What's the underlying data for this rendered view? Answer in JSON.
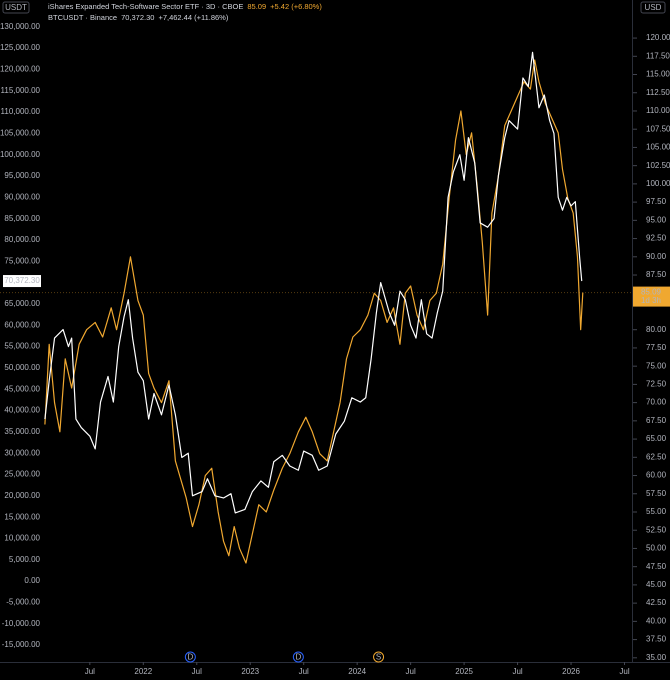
{
  "chart_data": {
    "type": "line",
    "y_unit": "USDT",
    "y2_unit": "USD",
    "countdown": "1d 3h",
    "grid": false,
    "xlim": [
      2020.66,
      2026.57
    ],
    "xticks": [
      {
        "value": 2021.5,
        "label": "Jul"
      },
      2022,
      {
        "value": 2022.5,
        "label": "Jul"
      },
      2023,
      {
        "value": 2023.5,
        "label": "Jul"
      },
      2024,
      {
        "value": 2024.5,
        "label": "Jul"
      },
      2025,
      {
        "value": 2025.5,
        "label": "Jul"
      },
      2026,
      {
        "value": 2026.5,
        "label": "Jul"
      }
    ],
    "ylim": [
      -18500,
      133000
    ],
    "yticks": [
      {
        "value": 130000,
        "label": "130,000.00"
      },
      {
        "value": 125000,
        "label": "125,000.00"
      },
      {
        "value": 120000,
        "label": "120,000.00"
      },
      {
        "value": 115000,
        "label": "115,000.00"
      },
      {
        "value": 110000,
        "label": "110,000.00"
      },
      {
        "value": 105000,
        "label": "105,000.00"
      },
      {
        "value": 100000,
        "label": "100,000.00"
      },
      {
        "value": 95000,
        "label": "95,000.00"
      },
      {
        "value": 90000,
        "label": "90,000.00"
      },
      {
        "value": 85000,
        "label": "85,000.00"
      },
      {
        "value": 80000,
        "label": "80,000.00"
      },
      {
        "value": 75000,
        "label": "75,000.00"
      },
      {
        "value": 65000,
        "label": "65,000.00"
      },
      {
        "value": 60000,
        "label": "60,000.00"
      },
      {
        "value": 55000,
        "label": "55,000.00"
      },
      {
        "value": 50000,
        "label": "50,000.00"
      },
      {
        "value": 45000,
        "label": "45,000.00"
      },
      {
        "value": 40000,
        "label": "40,000.00"
      },
      {
        "value": 35000,
        "label": "35,000.00"
      },
      {
        "value": 30000,
        "label": "30,000.00"
      },
      {
        "value": 25000,
        "label": "25,000.00"
      },
      {
        "value": 20000,
        "label": "20,000.00"
      },
      {
        "value": 15000,
        "label": "15,000.00"
      },
      {
        "value": 10000,
        "label": "10,000.00"
      },
      {
        "value": 5000,
        "label": "5,000.00"
      },
      {
        "value": 0,
        "label": "0.00"
      },
      {
        "value": -5000,
        "label": "-5,000.00"
      },
      {
        "value": -10000,
        "label": "-10,000.00"
      },
      {
        "value": -15000,
        "label": "-15,000.00"
      }
    ],
    "y2lim": [
      34.7,
      123.3
    ],
    "y2ticks": [
      {
        "value": 120,
        "label": "120.00"
      },
      {
        "value": 117.5,
        "label": "117.50"
      },
      {
        "value": 115,
        "label": "115.00"
      },
      {
        "value": 112.5,
        "label": "112.50"
      },
      {
        "value": 110,
        "label": "110.00"
      },
      {
        "value": 107.5,
        "label": "107.50"
      },
      {
        "value": 105,
        "label": "105.00"
      },
      {
        "value": 102.5,
        "label": "102.50"
      },
      {
        "value": 100,
        "label": "100.00"
      },
      {
        "value": 97.5,
        "label": "97.50"
      },
      {
        "value": 95,
        "label": "95.00"
      },
      {
        "value": 92.5,
        "label": "92.50"
      },
      {
        "value": 90,
        "label": "90.00"
      },
      {
        "value": 87.5,
        "label": "87.50"
      },
      {
        "value": 80,
        "label": "80.00"
      },
      {
        "value": 77.5,
        "label": "77.50"
      },
      {
        "value": 75,
        "label": "75.00"
      },
      {
        "value": 72.5,
        "label": "72.50"
      },
      {
        "value": 70,
        "label": "70.00"
      },
      {
        "value": 67.5,
        "label": "67.50"
      },
      {
        "value": 65,
        "label": "65.00"
      },
      {
        "value": 62.5,
        "label": "62.50"
      },
      {
        "value": 60,
        "label": "60.00"
      },
      {
        "value": 57.5,
        "label": "57.50"
      },
      {
        "value": 55,
        "label": "55.00"
      },
      {
        "value": 52.5,
        "label": "52.50"
      },
      {
        "value": 50,
        "label": "50.00"
      },
      {
        "value": 47.5,
        "label": "47.50"
      },
      {
        "value": 45,
        "label": "45.00"
      },
      {
        "value": 42.5,
        "label": "42.50"
      },
      {
        "value": 40,
        "label": "40.00"
      },
      {
        "value": 37.5,
        "label": "37.50"
      },
      {
        "value": 35,
        "label": "35.00"
      }
    ],
    "series": [
      {
        "name": "iShares Expanded Tech-Software Sector ETF · 3D · CBOE",
        "color": "#f0a830",
        "axis": "y2",
        "last_label": "85.09",
        "change_label": "+5.42 (+6.80%)",
        "x": [
          2021.08,
          2021.12,
          2021.17,
          2021.22,
          2021.27,
          2021.33,
          2021.4,
          2021.47,
          2021.55,
          2021.62,
          2021.7,
          2021.75,
          2021.82,
          2021.88,
          2021.95,
          2022.0,
          2022.05,
          2022.1,
          2022.17,
          2022.24,
          2022.3,
          2022.36,
          2022.4,
          2022.46,
          2022.52,
          2022.58,
          2022.64,
          2022.7,
          2022.75,
          2022.8,
          2022.85,
          2022.9,
          2022.96,
          2023.02,
          2023.08,
          2023.15,
          2023.22,
          2023.3,
          2023.37,
          2023.45,
          2023.52,
          2023.58,
          2023.65,
          2023.72,
          2023.78,
          2023.84,
          2023.9,
          2023.96,
          2024.03,
          2024.1,
          2024.16,
          2024.22,
          2024.28,
          2024.34,
          2024.4,
          2024.45,
          2024.5,
          2024.56,
          2024.62,
          2024.68,
          2024.74,
          2024.8,
          2024.86,
          2024.92,
          2024.97,
          2025.02,
          2025.07,
          2025.12,
          2025.17,
          2025.22,
          2025.26,
          2025.32,
          2025.38,
          2025.44,
          2025.5,
          2025.56,
          2025.62,
          2025.66,
          2025.7,
          2025.76,
          2025.82,
          2025.88,
          2025.92,
          2025.97,
          2026.02,
          2026.06,
          2026.09,
          2026.11
        ],
        "values": [
          67,
          78,
          70,
          66,
          76,
          72,
          78,
          80,
          81,
          79,
          83,
          80,
          85,
          90,
          84,
          82,
          74,
          72,
          70,
          73,
          62,
          59,
          57,
          53,
          56,
          60,
          61,
          55,
          51,
          49,
          53,
          50,
          48,
          52,
          56,
          55,
          58,
          61,
          63,
          66,
          68,
          66,
          63,
          62,
          66,
          70,
          76,
          79,
          80,
          82,
          85,
          84,
          81,
          83,
          78,
          85,
          86,
          82,
          80,
          84,
          85,
          89,
          98,
          106,
          110,
          104,
          107,
          100,
          92,
          82,
          96,
          101,
          108,
          110,
          112,
          114,
          113,
          117,
          114,
          111,
          109,
          107,
          102,
          98,
          96,
          90,
          80,
          85.09
        ]
      },
      {
        "name": "BTCUSDT · Binance",
        "color": "#ffffff",
        "axis": "y",
        "last_label": "70,372.30",
        "change_label": "+7,462.44 (+11.86%)",
        "x": [
          2021.08,
          2021.12,
          2021.17,
          2021.25,
          2021.3,
          2021.33,
          2021.37,
          2021.42,
          2021.5,
          2021.55,
          2021.6,
          2021.67,
          2021.72,
          2021.77,
          2021.82,
          2021.86,
          2021.9,
          2021.95,
          2022.0,
          2022.05,
          2022.1,
          2022.17,
          2022.24,
          2022.3,
          2022.36,
          2022.42,
          2022.46,
          2022.55,
          2022.6,
          2022.67,
          2022.75,
          2022.82,
          2022.86,
          2022.95,
          2023.02,
          2023.1,
          2023.17,
          2023.22,
          2023.3,
          2023.37,
          2023.45,
          2023.5,
          2023.58,
          2023.64,
          2023.72,
          2023.8,
          2023.88,
          2023.95,
          2024.03,
          2024.08,
          2024.13,
          2024.18,
          2024.22,
          2024.3,
          2024.35,
          2024.4,
          2024.45,
          2024.5,
          2024.55,
          2024.6,
          2024.65,
          2024.7,
          2024.75,
          2024.8,
          2024.85,
          2024.9,
          2024.96,
          2025.0,
          2025.04,
          2025.1,
          2025.15,
          2025.22,
          2025.28,
          2025.32,
          2025.38,
          2025.42,
          2025.5,
          2025.55,
          2025.6,
          2025.64,
          2025.7,
          2025.75,
          2025.8,
          2025.84,
          2025.88,
          2025.92,
          2025.96,
          2026.0,
          2026.04,
          2026.08,
          2026.1
        ],
        "values": [
          38000,
          47000,
          57000,
          59000,
          55000,
          57000,
          38000,
          36000,
          34000,
          31000,
          42000,
          48000,
          42000,
          55000,
          62000,
          66000,
          57000,
          49000,
          47000,
          38000,
          44000,
          39000,
          46000,
          39000,
          29000,
          30000,
          20000,
          21000,
          24000,
          20000,
          19500,
          20500,
          16000,
          16800,
          21000,
          23500,
          22000,
          28000,
          29500,
          27000,
          26000,
          30500,
          29500,
          26000,
          27000,
          34500,
          37500,
          43000,
          42000,
          43000,
          52000,
          63000,
          70000,
          63000,
          60000,
          68000,
          66000,
          60000,
          57000,
          66000,
          58000,
          57000,
          63000,
          68000,
          90000,
          96000,
          100000,
          94000,
          104000,
          98000,
          84000,
          83000,
          85000,
          95000,
          104000,
          108000,
          106000,
          118000,
          116000,
          124000,
          111000,
          114000,
          108000,
          105000,
          90000,
          87000,
          90000,
          88000,
          89000,
          76000,
          70372.3
        ]
      }
    ],
    "events": [
      {
        "x": 2022.44,
        "label": "D",
        "color": "#2962ff"
      },
      {
        "x": 2023.45,
        "label": "D",
        "color": "#2962ff"
      },
      {
        "x": 2024.2,
        "label": "S",
        "color": "#f0a830"
      }
    ]
  }
}
